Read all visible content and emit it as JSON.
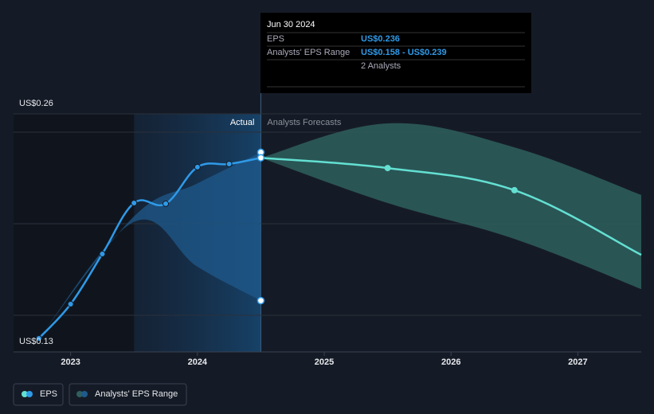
{
  "chart_data": {
    "type": "line",
    "xlim": [
      2022.55,
      2027.5
    ],
    "xticks": [
      2023,
      2024,
      2025,
      2026,
      2027
    ],
    "ylim": [
      0.13,
      0.26
    ],
    "yticks": [
      {
        "value": 0.13,
        "label": "US$0.13"
      },
      {
        "value": 0.26,
        "label": "US$0.26"
      }
    ],
    "ygrid": [
      0.15,
      0.2,
      0.25
    ],
    "actual_label": "Actual",
    "forecast_label": "Analysts Forecasts",
    "series": [
      {
        "name": "EPS",
        "color": "#2f9ae8",
        "x": [
          2022.75,
          2023.0,
          2023.25,
          2023.5,
          2023.75,
          2024.0,
          2024.25,
          2024.5
        ],
        "values": [
          0.1374,
          0.1561,
          0.1835,
          0.2113,
          0.2109,
          0.2309,
          0.2326,
          0.236
        ]
      }
    ],
    "forecast": {
      "color": "#63e0d2",
      "x": [
        2024.5,
        2025.5,
        2026.5,
        2027.5
      ],
      "values": [
        0.236,
        0.2304,
        0.2183,
        0.183
      ]
    },
    "range": {
      "name": "Analysts' EPS Range",
      "past": {
        "color": "#1f5a8c",
        "x": [
          2022.75,
          2023.5,
          2024.0,
          2024.5
        ],
        "low": [
          0.1374,
          0.201,
          0.1765,
          0.158
        ],
        "high": [
          0.1374,
          0.204,
          0.222,
          0.239
        ]
      },
      "future": {
        "color": "#2e5f5e",
        "x": [
          2024.5,
          2025.5,
          2026.5,
          2027.5
        ],
        "low": [
          0.236,
          0.2113,
          0.1917,
          0.1643
        ],
        "high": [
          0.236,
          0.2548,
          0.2417,
          0.2157
        ]
      }
    },
    "tooltip": {
      "date": "Jun 30 2024",
      "eps_label": "EPS",
      "eps_value": "US$0.236",
      "range_label": "Analysts' EPS Range",
      "range_value": "US$0.158 - US$0.239",
      "analysts": "2 Analysts"
    }
  }
}
